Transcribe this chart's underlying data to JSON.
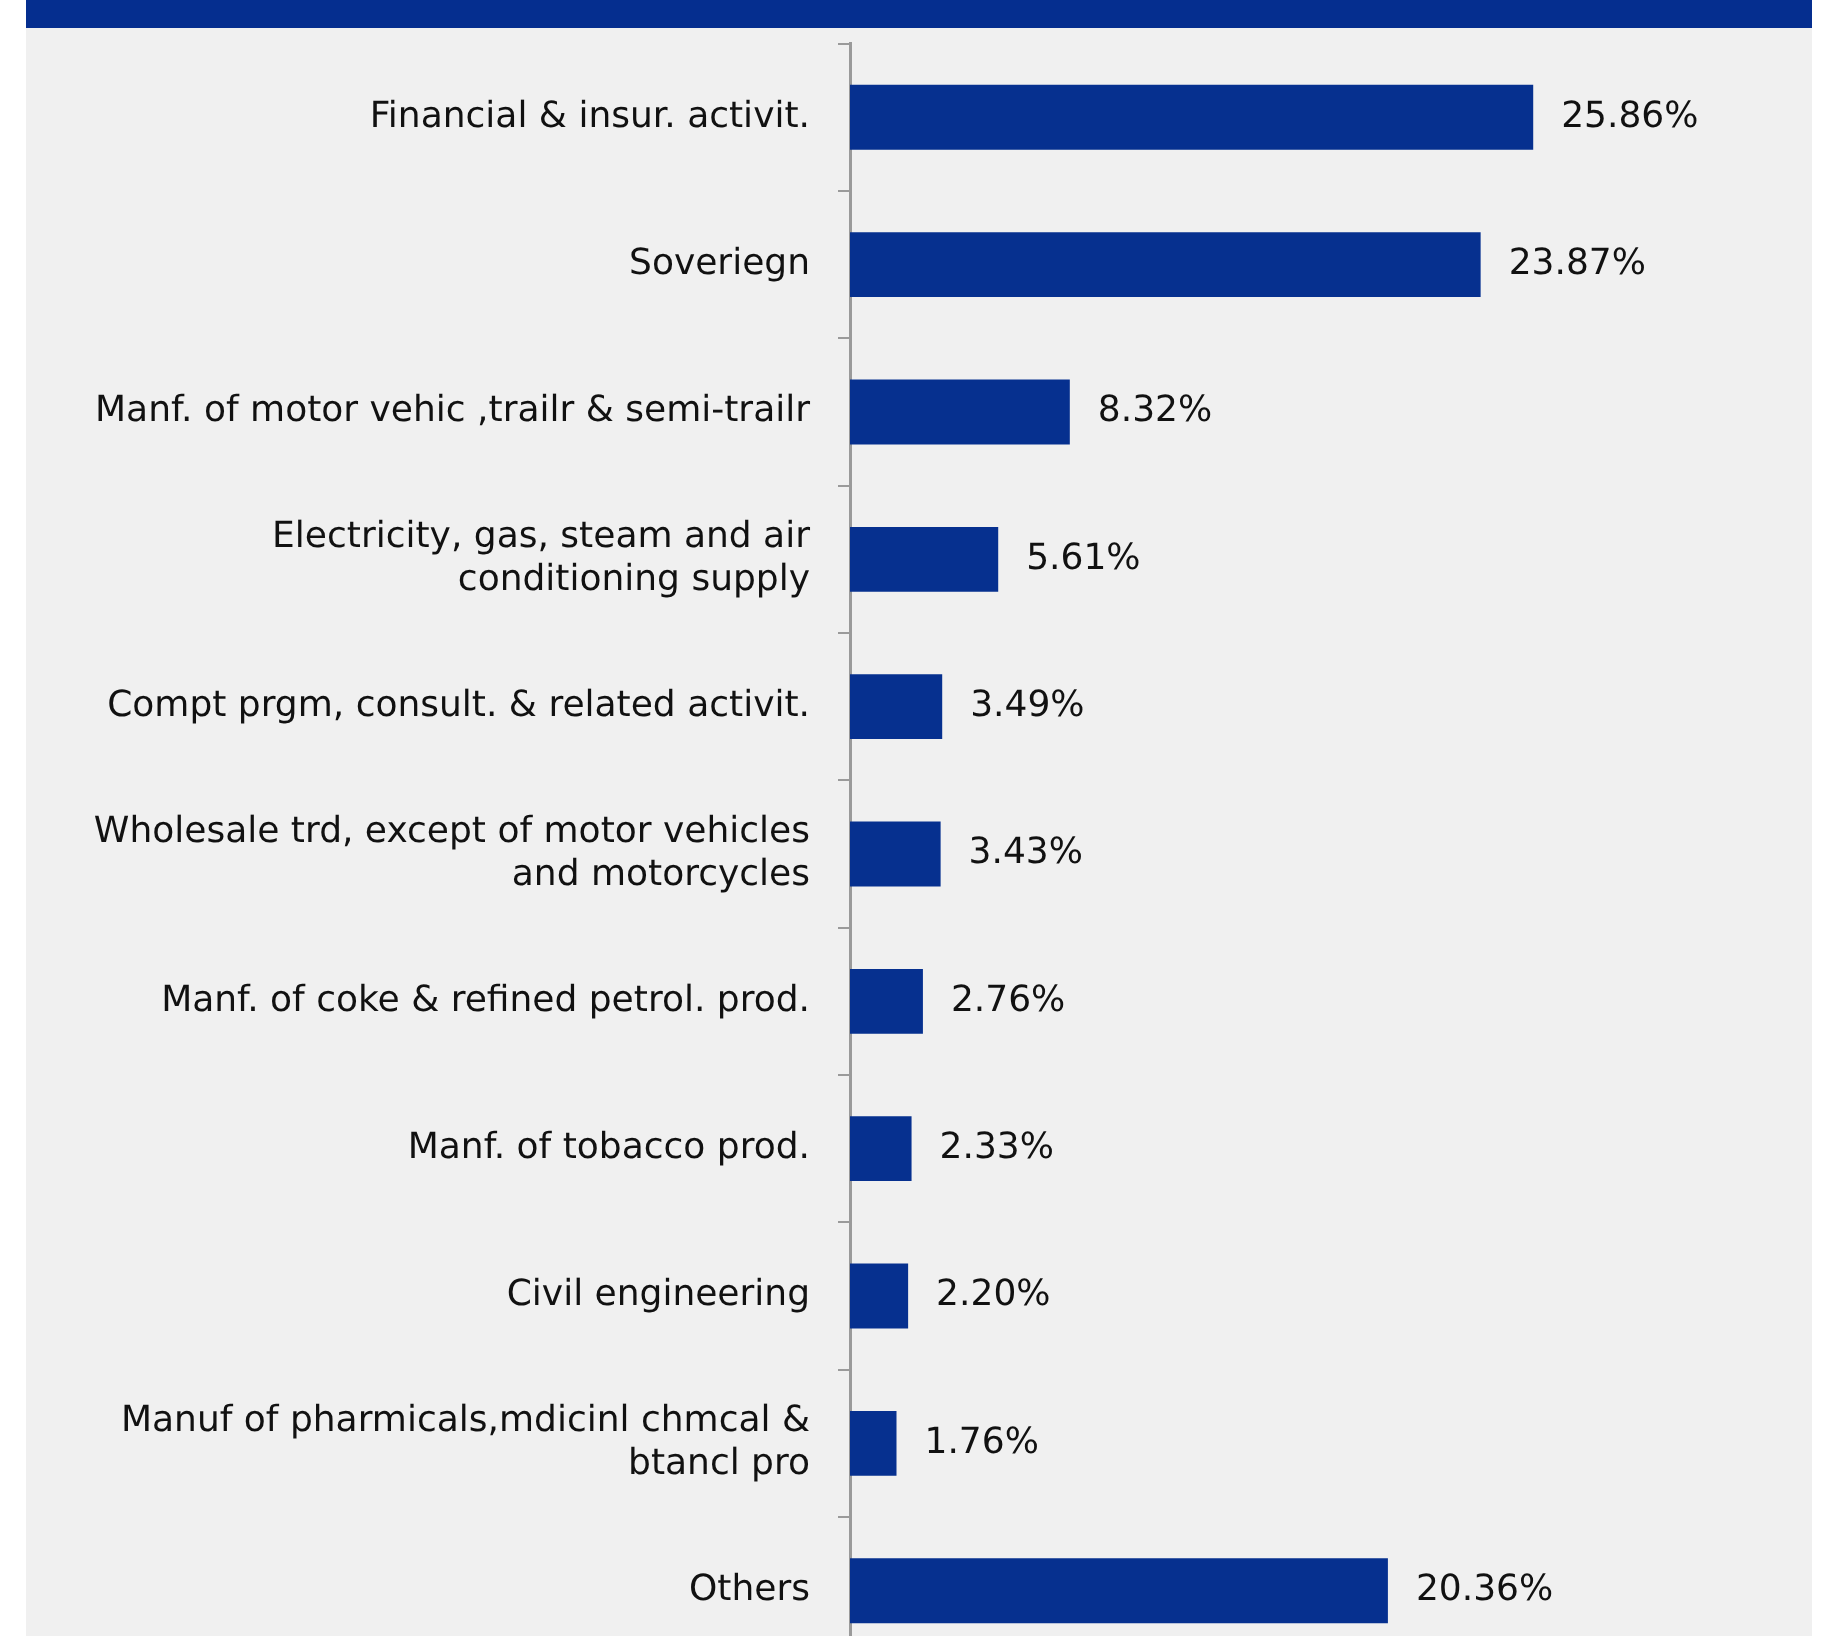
{
  "chart_data": {
    "type": "bar",
    "orientation": "horizontal",
    "data_labels": true,
    "grid": false,
    "legend": false,
    "categories": [
      "Financial & insur. activit.",
      "Soveriegn",
      "Manf. of motor vehic ,trailr & semi-trailr",
      "Electricity, gas, steam and air conditioning supply",
      "Compt prgm, consult. & related activit.",
      "Wholesale trd, except of motor vehicles and motorcycles",
      "Manf. of coke & refined petrol. prod.",
      "Manf. of tobacco prod.",
      "Civil engineering",
      "Manuf of pharmicals,mdicinl chmcal & btancl pro",
      "Others"
    ],
    "values": [
      25.86,
      23.87,
      8.32,
      5.61,
      3.49,
      3.43,
      2.76,
      2.33,
      2.2,
      1.76,
      20.36
    ],
    "value_labels": [
      "25.86%",
      "23.87%",
      "8.32%",
      "5.61%",
      "3.49%",
      "3.43%",
      "2.76%",
      "2.33%",
      "2.20%",
      "1.76%",
      "20.36%"
    ],
    "color": "#06308f"
  }
}
